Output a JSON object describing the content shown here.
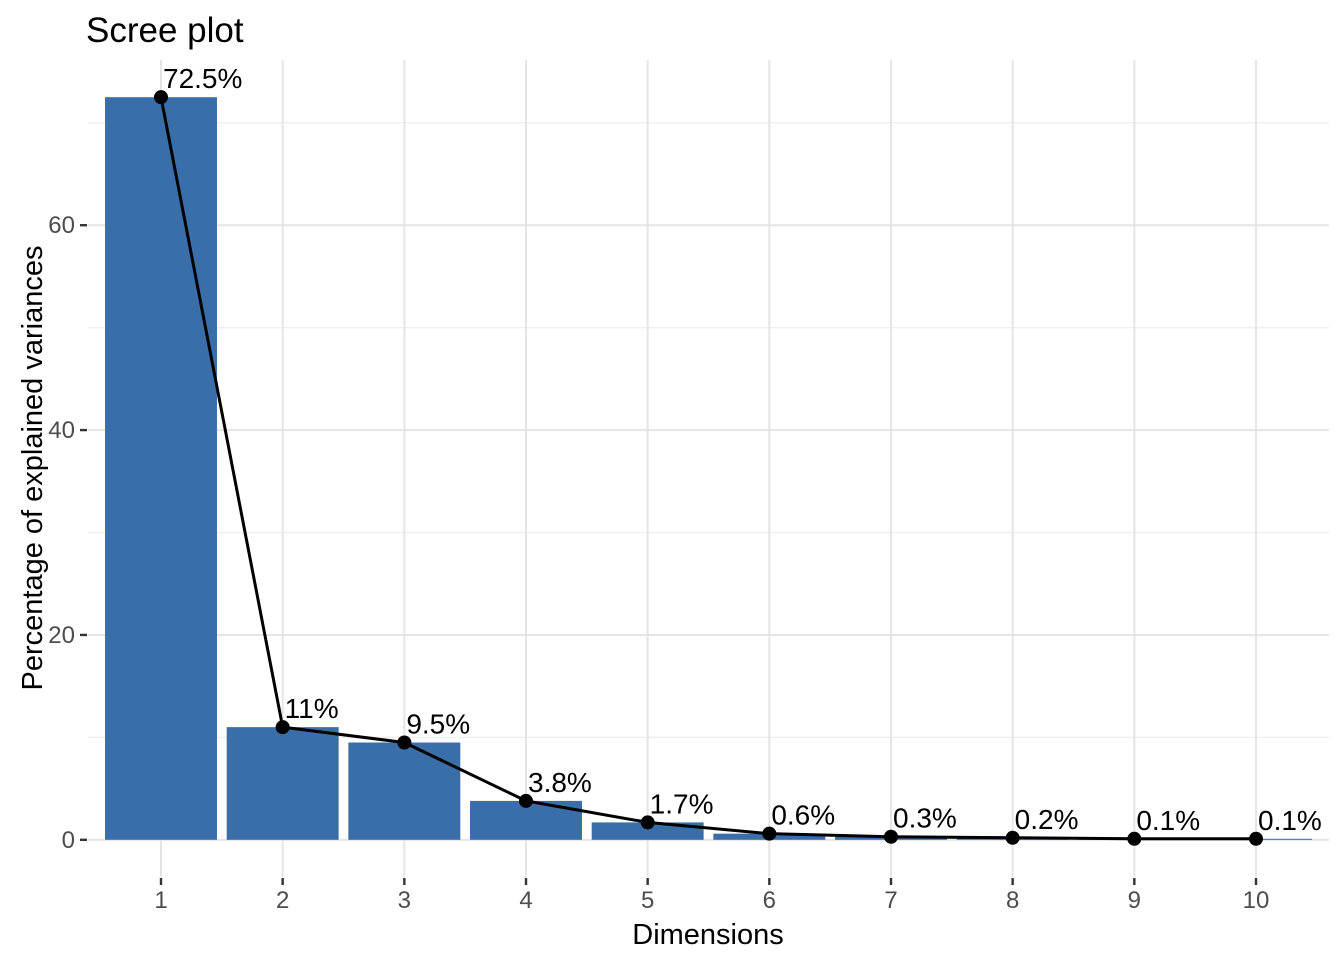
{
  "chart_data": {
    "type": "bar",
    "overlay": "line-with-points",
    "title": "Scree plot",
    "xlabel": "Dimensions",
    "ylabel": "Percentage of explained variances",
    "categories": [
      "1",
      "2",
      "3",
      "4",
      "5",
      "6",
      "7",
      "8",
      "9",
      "10"
    ],
    "values": [
      72.5,
      11,
      9.5,
      3.8,
      1.7,
      0.6,
      0.3,
      0.2,
      0.1,
      0.1
    ],
    "point_labels": [
      "72.5%",
      "11%",
      "9.5%",
      "3.8%",
      "1.7%",
      "0.6%",
      "0.3%",
      "0.2%",
      "0.1%",
      "0.1%"
    ],
    "yticks": [
      0,
      20,
      40,
      60
    ],
    "yticks_minor": [
      10,
      30,
      50,
      70
    ],
    "ylim": [
      -3.63,
      76.13
    ],
    "grid": true,
    "legend": "none",
    "colors": {
      "bar_fill": "#3A6EA8",
      "line": "#000000",
      "point": "#000000",
      "grid_major": "#E5E5E5",
      "grid_minor": "#EFEFEF",
      "tick_mark": "#333333",
      "tick_label": "#4D4D4D",
      "data_label": "#000000",
      "background": "#FFFFFF"
    }
  }
}
